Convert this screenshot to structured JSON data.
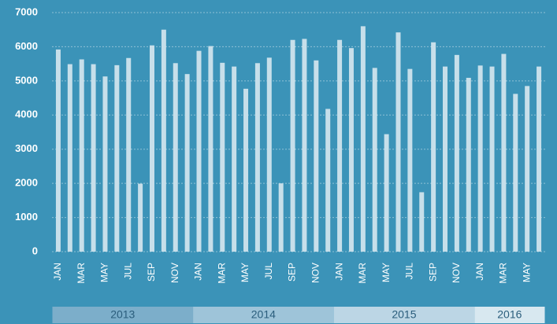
{
  "chart_data": {
    "type": "bar",
    "categories": [
      "JAN",
      null,
      "MAR",
      null,
      "MAY",
      null,
      "JUL",
      null,
      "SEP",
      null,
      "NOV",
      null,
      "JAN",
      null,
      "MAR",
      null,
      "MAY",
      null,
      "JUL",
      null,
      "SEP",
      null,
      "NOV",
      null,
      "JAN",
      null,
      "MAR",
      null,
      "MAY",
      null,
      "JUL",
      null,
      "SEP",
      null,
      "NOV",
      null,
      "JAN",
      null,
      "MAR",
      null,
      "MAY",
      null
    ],
    "values": [
      5920,
      5490,
      5630,
      5490,
      5130,
      5460,
      5670,
      1990,
      6040,
      6500,
      5520,
      5200,
      5880,
      6020,
      5530,
      5420,
      4770,
      5520,
      5680,
      2000,
      6200,
      6230,
      5600,
      4180,
      6200,
      5960,
      6600,
      5380,
      3440,
      6420,
      5350,
      1740,
      6130,
      5420,
      5760,
      5090,
      5450,
      5420,
      5790,
      4620,
      4850,
      5420
    ],
    "color": "#c7dfea",
    "years": [
      "2013",
      "2014",
      "2015",
      "2016"
    ],
    "year_colors": [
      "#7caeca",
      "#9ec4d9",
      "#bcd6e5",
      "#d8e8f0"
    ],
    "ylim": [
      0,
      7000
    ],
    "yticks": [
      0,
      1000,
      2000,
      3000,
      4000,
      5000,
      6000,
      7000
    ],
    "grid": true
  }
}
